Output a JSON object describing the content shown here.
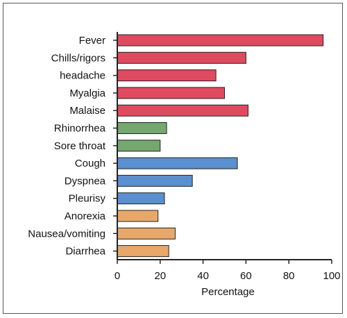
{
  "chart_data": {
    "type": "bar",
    "orientation": "horizontal",
    "title": "",
    "xlabel": "Percentage",
    "ylabel": "",
    "xlim": [
      0,
      100
    ],
    "xticks": [
      "0",
      "20",
      "40",
      "60",
      "80",
      "100"
    ],
    "grid": false,
    "categories": [
      "Fever",
      "Chills/rigors",
      "headache",
      "Myalgia",
      "Malaise",
      "Rhinorrhea",
      "Sore throat",
      "Cough",
      "Dyspnea",
      "Pleurisy",
      "Anorexia",
      "Nausea/vomiting",
      "Diarrhea"
    ],
    "values": [
      96,
      60,
      46,
      50,
      61,
      23,
      20,
      56,
      35,
      22,
      19,
      27,
      24
    ],
    "colors": [
      "#e04a5f",
      "#e04a5f",
      "#e04a5f",
      "#e04a5f",
      "#e04a5f",
      "#74a86e",
      "#74a86e",
      "#5a8fd0",
      "#5a8fd0",
      "#5a8fd0",
      "#e8a86a",
      "#e8a86a",
      "#e8a86a"
    ]
  }
}
